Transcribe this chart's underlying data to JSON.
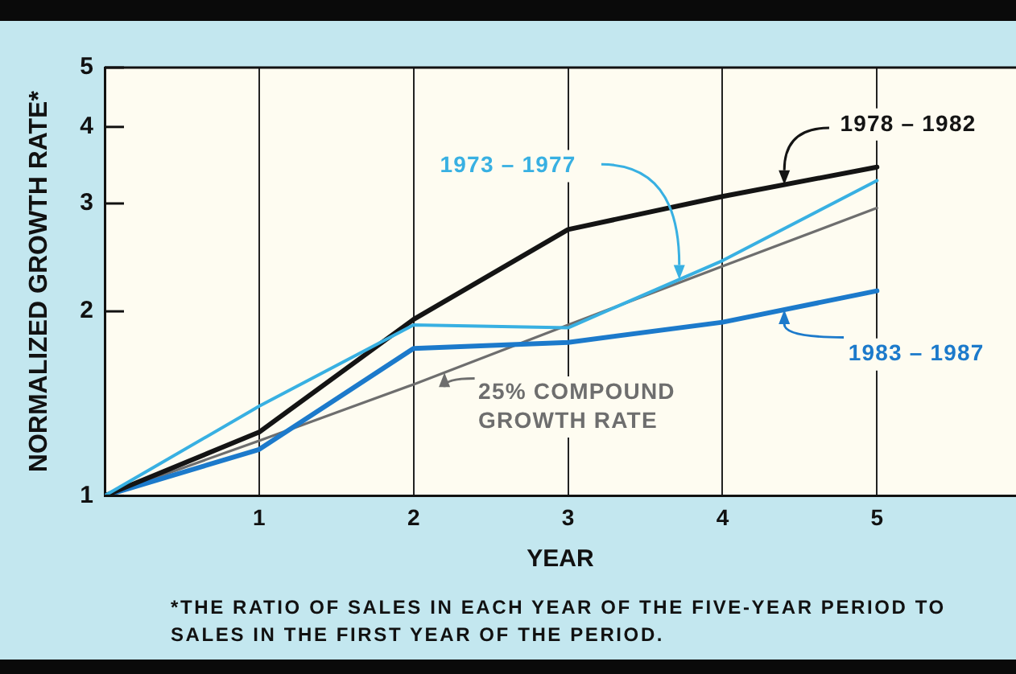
{
  "chart_data": {
    "type": "line",
    "ylabel": "NORMALIZED GROWTH RATE*",
    "xlabel": "YEAR",
    "annotations": [
      "*THE RATIO OF SALES IN EACH YEAR OF THE FIVE-YEAR PERIOD TO SALES IN THE FIRST YEAR OF THE PERIOD."
    ],
    "x": [
      0,
      1,
      2,
      3,
      4,
      5
    ],
    "series": [
      {
        "name": "1973 – 1977",
        "color": "#38b0e2",
        "values": [
          1,
          1.4,
          1.9,
          1.88,
          2.42,
          3.27
        ]
      },
      {
        "name": "1978 – 1982",
        "color": "#141414",
        "values": [
          1,
          1.27,
          1.94,
          2.72,
          3.08,
          3.44
        ]
      },
      {
        "name": "1983 – 1987",
        "color": "#1c7acb",
        "values": [
          1,
          1.19,
          1.74,
          1.78,
          1.92,
          2.16
        ]
      },
      {
        "name": "25% COMPOUND GROWTH RATE",
        "color": "#6e6e6e",
        "values": [
          1,
          1.23,
          1.52,
          1.9,
          2.37,
          2.95
        ]
      }
    ],
    "xlim": [
      0,
      5.9
    ],
    "xticks": [
      1,
      2,
      3,
      4,
      5
    ],
    "ylim": [
      1,
      5
    ],
    "yticks": [
      1,
      2,
      3,
      4,
      5
    ],
    "log": true,
    "grid": "x"
  }
}
